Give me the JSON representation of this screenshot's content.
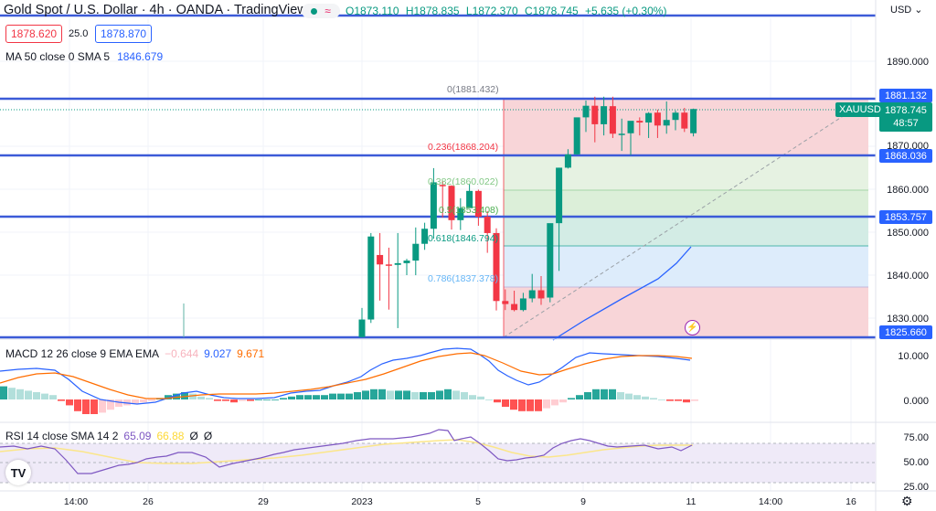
{
  "header": {
    "title": "Gold Spot / U.S. Dollar · 4h · OANDA · TradingView",
    "status_icons": [
      "market-open-dot-icon",
      "delayed-data-icon"
    ],
    "ohlc": {
      "open": "O1873.110",
      "high": "H1878.835",
      "low": "L1872.370",
      "close": "C1878.745",
      "change": "+5.635 (+0.30%)"
    },
    "sell_price": "1878.620",
    "spread": "25.0",
    "buy_price": "1878.870"
  },
  "ma_legend": {
    "label": "MA 50 close 0 SMA 5",
    "value": "1846.679"
  },
  "macd_legend": {
    "label": "MACD 12 26 close 9 EMA EMA",
    "histogram": "−0.644",
    "macd": "9.027",
    "signal": "9.671"
  },
  "rsi_legend": {
    "label": "RSI 14 close SMA 14 2",
    "rsi": "65.09",
    "sma": "66.88",
    "extra1": "Ø",
    "extra2": "Ø"
  },
  "price_axis": {
    "currency": "USD ⌄",
    "ticks": [
      "1890.000",
      "1870.000",
      "1860.000",
      "1850.000",
      "1840.000",
      "1830.000"
    ],
    "horizontal_line_tags": [
      "1881.132",
      "1868.036",
      "1853.757",
      "1825.660"
    ],
    "symbol": "XAUUSD",
    "last_price": "1878.745",
    "countdown": "48:57"
  },
  "macd_axis": {
    "ticks": [
      "10.000",
      "0.000"
    ]
  },
  "rsi_axis": {
    "ticks": [
      "75.00",
      "50.00",
      "25.00"
    ]
  },
  "time_axis": {
    "ticks": [
      "14:00",
      "26",
      "29",
      "2023",
      "5",
      "9",
      "11",
      "14:00",
      "16"
    ]
  },
  "fibonacci": [
    {
      "label": "0(1881.432)",
      "color": "#787b86"
    },
    {
      "label": "0.236(1868.204)",
      "color": "#f23645"
    },
    {
      "label": "0.382(1860.022)",
      "color": "#81c784"
    },
    {
      "label": "0.5(1853.408)",
      "color": "#4caf50"
    },
    {
      "label": "0.618(1846.794)",
      "color": "#089981"
    },
    {
      "label": "0.786(1837.378)",
      "color": "#64b5f6"
    }
  ],
  "colors": {
    "up": "#089981",
    "down": "#f23645",
    "hline": "#3c5bd8",
    "ma": "#2962ff",
    "macd": "#2962ff",
    "signal": "#ff6d00",
    "rsi": "#7e57c2",
    "rsi_sma": "#fdd835"
  },
  "chart_data": [
    {
      "type": "candlestick",
      "title": "Gold Spot / U.S. Dollar · 4h · OANDA",
      "xlabel": "",
      "ylabel": "USD",
      "ylim": [
        1824,
        1896
      ],
      "x_ticks": [
        "14:00",
        "26",
        "29",
        "2023",
        "5",
        "9",
        "11",
        "14:00",
        "16"
      ],
      "horizontal_lines": [
        1881.132,
        1868.036,
        1853.757,
        1825.66
      ],
      "last_price": 1878.745,
      "ma50_last": 1846.679,
      "fib_retracement": {
        "0": 1881.432,
        "0.236": 1868.204,
        "0.382": 1860.022,
        "0.5": 1853.408,
        "0.618": 1846.794,
        "0.786": 1837.378
      },
      "candles": [
        {
          "o": 1825.7,
          "h": 1832.5,
          "l": 1825.7,
          "c": 1829.8
        },
        {
          "o": 1829.8,
          "h": 1849.9,
          "l": 1829.0,
          "c": 1849.1
        },
        {
          "o": 1844.8,
          "h": 1849.9,
          "l": 1834.2,
          "c": 1842.6
        },
        {
          "o": 1842.6,
          "h": 1846.5,
          "l": 1832.1,
          "c": 1842.5
        },
        {
          "o": 1842.5,
          "h": 1849.9,
          "l": 1827.8,
          "c": 1842.9
        },
        {
          "o": 1842.9,
          "h": 1843.9,
          "l": 1840.1,
          "c": 1843.5
        },
        {
          "o": 1843.5,
          "h": 1851.2,
          "l": 1840.1,
          "c": 1847.4
        },
        {
          "o": 1847.4,
          "h": 1852.3,
          "l": 1846.0,
          "c": 1850.9
        },
        {
          "o": 1850.9,
          "h": 1865.0,
          "l": 1848.6,
          "c": 1861.7
        },
        {
          "o": 1861.1,
          "h": 1862.0,
          "l": 1853.5,
          "c": 1860.9
        },
        {
          "o": 1860.9,
          "h": 1861.0,
          "l": 1850.7,
          "c": 1852.9
        },
        {
          "o": 1852.9,
          "h": 1858.0,
          "l": 1850.6,
          "c": 1855.7
        },
        {
          "o": 1855.7,
          "h": 1861.3,
          "l": 1856.0,
          "c": 1859.7
        },
        {
          "o": 1859.7,
          "h": 1860.0,
          "l": 1851.6,
          "c": 1853.7
        },
        {
          "o": 1853.7,
          "h": 1855.0,
          "l": 1845.3,
          "c": 1849.9
        },
        {
          "o": 1849.9,
          "h": 1851.0,
          "l": 1831.9,
          "c": 1834.1
        },
        {
          "o": 1834.1,
          "h": 1836.8,
          "l": 1832.0,
          "c": 1833.4
        },
        {
          "o": 1833.4,
          "h": 1836.5,
          "l": 1831.7,
          "c": 1832.0
        },
        {
          "o": 1832.0,
          "h": 1836.0,
          "l": 1831.7,
          "c": 1834.7
        },
        {
          "o": 1834.7,
          "h": 1840.4,
          "l": 1833.8,
          "c": 1836.6
        },
        {
          "o": 1836.6,
          "h": 1839.9,
          "l": 1833.2,
          "c": 1834.7
        },
        {
          "o": 1834.9,
          "h": 1852.0,
          "l": 1833.8,
          "c": 1852.2
        },
        {
          "o": 1852.2,
          "h": 1865.1,
          "l": 1841.1,
          "c": 1865.1
        },
        {
          "o": 1865.1,
          "h": 1869.4,
          "l": 1864.9,
          "c": 1868.2
        },
        {
          "o": 1868.2,
          "h": 1873.7,
          "l": 1868.1,
          "c": 1876.8
        },
        {
          "o": 1876.8,
          "h": 1880.7,
          "l": 1873.4,
          "c": 1879.5
        },
        {
          "o": 1879.5,
          "h": 1881.6,
          "l": 1871.0,
          "c": 1875.2
        },
        {
          "o": 1875.2,
          "h": 1881.6,
          "l": 1872.6,
          "c": 1879.4
        },
        {
          "o": 1879.4,
          "h": 1881.6,
          "l": 1872.0,
          "c": 1873.0
        },
        {
          "o": 1873.0,
          "h": 1876.5,
          "l": 1869.0,
          "c": 1873.0
        },
        {
          "o": 1873.1,
          "h": 1875.3,
          "l": 1868.0,
          "c": 1876.0
        },
        {
          "o": 1876.0,
          "h": 1876.8,
          "l": 1872.6,
          "c": 1875.6
        },
        {
          "o": 1875.6,
          "h": 1878.0,
          "l": 1872.0,
          "c": 1877.8
        },
        {
          "o": 1877.9,
          "h": 1878.6,
          "l": 1872.0,
          "c": 1874.9
        },
        {
          "o": 1874.9,
          "h": 1880.5,
          "l": 1873.0,
          "c": 1876.2
        },
        {
          "o": 1876.2,
          "h": 1878.4,
          "l": 1873.8,
          "c": 1877.9
        },
        {
          "o": 1877.9,
          "h": 1879.0,
          "l": 1873.4,
          "c": 1874.2
        },
        {
          "o": 1873.11,
          "h": 1878.835,
          "l": 1872.37,
          "c": 1878.745
        }
      ]
    },
    {
      "type": "bar",
      "title": "MACD 12 26 close 9 EMA EMA",
      "ylim": [
        -3,
        14
      ],
      "series": [
        {
          "name": "MACD",
          "last": 9.027
        },
        {
          "name": "Signal",
          "last": 9.671
        },
        {
          "name": "Histogram",
          "last": -0.644
        }
      ],
      "y_ticks": [
        "10.000",
        "0.000"
      ]
    },
    {
      "type": "line",
      "title": "RSI 14 close SMA 14 2",
      "ylim": [
        20,
        85
      ],
      "y_ticks": [
        "75.00",
        "50.00",
        "25.00"
      ],
      "bands": [
        70,
        50,
        30
      ],
      "series": [
        {
          "name": "RSI",
          "last": 65.09
        },
        {
          "name": "RSI SMA",
          "last": 66.88
        }
      ]
    }
  ]
}
